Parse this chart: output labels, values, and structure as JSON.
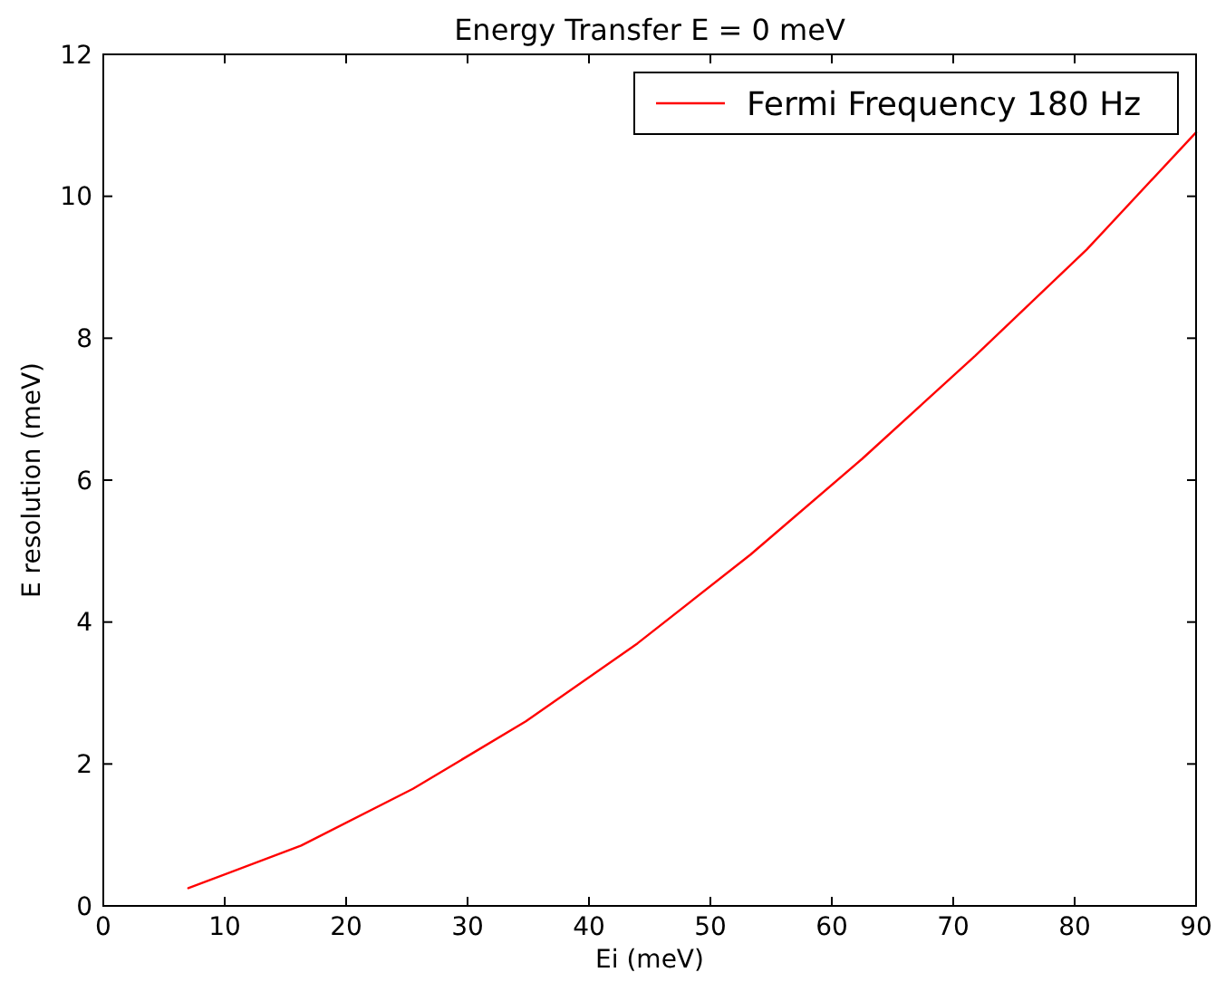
{
  "chart_data": {
    "type": "line",
    "title": "Energy Transfer E = 0 meV",
    "xlabel": "Ei (meV)",
    "ylabel": "E resolution (meV)",
    "x": [
      7,
      16.3,
      25.5,
      34.8,
      44,
      53.3,
      62.5,
      71.8,
      81,
      90
    ],
    "series": [
      {
        "name": "Fermi Frequency 180 Hz",
        "color": "#ff0000",
        "values": [
          0.25,
          0.85,
          1.65,
          2.6,
          3.7,
          4.95,
          6.3,
          7.75,
          9.25,
          10.9
        ]
      }
    ],
    "xlim": [
      0,
      90
    ],
    "xticks": [
      0,
      10,
      20,
      30,
      40,
      50,
      60,
      70,
      80,
      90
    ],
    "ylim": [
      0,
      12
    ],
    "yticks": [
      0,
      2,
      4,
      6,
      8,
      10,
      12
    ],
    "grid": false,
    "legend": "top right",
    "line_style": "solid"
  }
}
